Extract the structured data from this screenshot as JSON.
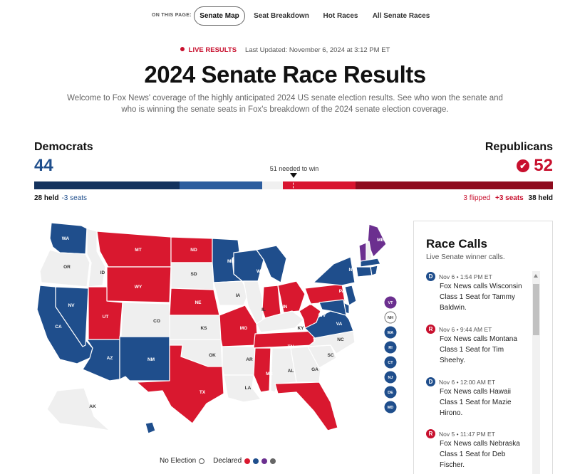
{
  "nav": {
    "label": "ON THIS PAGE:",
    "items": [
      "Senate Map",
      "Seat Breakdown",
      "Hot Races",
      "All Senate Races"
    ]
  },
  "live": {
    "badge": "LIVE RESULTS",
    "updated": "Last Updated: November 6, 2024 at 3:12 PM ET"
  },
  "title": "2024 Senate Race Results",
  "intro": "Welcome to Fox News' coverage of the highly anticipated 2024 US senate election results. See who won the senate and who is winning the senate seats in Fox's breakdown of the 2024 senate election coverage.",
  "balance": {
    "dem": {
      "label": "Democrats",
      "seats": "44",
      "held": "28 held",
      "change": "-3 seats"
    },
    "rep": {
      "label": "Republicans",
      "seats": "52",
      "flipped": "3 flipped",
      "change": "+3 seats",
      "held": "38 held"
    },
    "needed": "51 needed to win",
    "segments": [
      {
        "party": "dem-held",
        "seats": 28,
        "color": "#14335e"
      },
      {
        "party": "dem-won",
        "seats": 16,
        "color": "#2c5d9e"
      },
      {
        "party": "uncalled",
        "seats": 4,
        "color": "#f0f0f0"
      },
      {
        "party": "rep-won",
        "seats": 14,
        "color": "#d8142f"
      },
      {
        "party": "rep-held",
        "seats": 38,
        "color": "#8e0b1e"
      }
    ]
  },
  "colors": {
    "dem": "#1f4e8c",
    "rep": "#d9182f",
    "ind": "#6b2f8f",
    "none": "#efefef",
    "accent": "#c8102e"
  },
  "map": {
    "states": [
      {
        "abbr": "WA",
        "party": "dem"
      },
      {
        "abbr": "OR",
        "party": "none"
      },
      {
        "abbr": "CA",
        "party": "dem"
      },
      {
        "abbr": "NV",
        "party": "dem"
      },
      {
        "abbr": "ID",
        "party": "none"
      },
      {
        "abbr": "MT",
        "party": "rep"
      },
      {
        "abbr": "WY",
        "party": "rep"
      },
      {
        "abbr": "UT",
        "party": "rep"
      },
      {
        "abbr": "AZ",
        "party": "dem"
      },
      {
        "abbr": "CO",
        "party": "none"
      },
      {
        "abbr": "NM",
        "party": "dem"
      },
      {
        "abbr": "ND",
        "party": "rep"
      },
      {
        "abbr": "SD",
        "party": "none"
      },
      {
        "abbr": "NE",
        "party": "rep"
      },
      {
        "abbr": "KS",
        "party": "none"
      },
      {
        "abbr": "OK",
        "party": "none"
      },
      {
        "abbr": "TX",
        "party": "rep"
      },
      {
        "abbr": "MN",
        "party": "dem"
      },
      {
        "abbr": "IA",
        "party": "none"
      },
      {
        "abbr": "MO",
        "party": "rep"
      },
      {
        "abbr": "AR",
        "party": "none"
      },
      {
        "abbr": "LA",
        "party": "none"
      },
      {
        "abbr": "WI",
        "party": "dem"
      },
      {
        "abbr": "IL",
        "party": "none"
      },
      {
        "abbr": "MI",
        "party": "dem"
      },
      {
        "abbr": "IN",
        "party": "rep"
      },
      {
        "abbr": "OH",
        "party": "rep"
      },
      {
        "abbr": "KY",
        "party": "none"
      },
      {
        "abbr": "TN",
        "party": "rep"
      },
      {
        "abbr": "MS",
        "party": "rep"
      },
      {
        "abbr": "AL",
        "party": "none"
      },
      {
        "abbr": "GA",
        "party": "none"
      },
      {
        "abbr": "FL",
        "party": "rep"
      },
      {
        "abbr": "SC",
        "party": "none"
      },
      {
        "abbr": "NC",
        "party": "none"
      },
      {
        "abbr": "VA",
        "party": "dem"
      },
      {
        "abbr": "WV",
        "party": "rep"
      },
      {
        "abbr": "PA",
        "party": "rep"
      },
      {
        "abbr": "NY",
        "party": "dem"
      },
      {
        "abbr": "ME",
        "party": "ind"
      },
      {
        "abbr": "AK",
        "party": "none"
      },
      {
        "abbr": "HI",
        "party": "dem"
      }
    ],
    "small_states": [
      {
        "abbr": "VT",
        "party": "ind"
      },
      {
        "abbr": "NH",
        "party": "none"
      },
      {
        "abbr": "MA",
        "party": "dem"
      },
      {
        "abbr": "RI",
        "party": "dem"
      },
      {
        "abbr": "CT",
        "party": "dem"
      },
      {
        "abbr": "NJ",
        "party": "dem"
      },
      {
        "abbr": "DE",
        "party": "dem"
      },
      {
        "abbr": "MD",
        "party": "dem"
      }
    ]
  },
  "legend": {
    "no_election": "No Election",
    "declared": "Declared"
  },
  "race_calls": {
    "title": "Race Calls",
    "subtitle": "Live Senate winner calls.",
    "items": [
      {
        "party": "D",
        "time": "Nov 6 • 1:54 PM ET",
        "text": "Fox News calls Wisconsin Class 1 Seat for Tammy Baldwin."
      },
      {
        "party": "R",
        "time": "Nov 6 • 9:44 AM ET",
        "text": "Fox News calls Montana Class 1 Seat for Tim Sheehy."
      },
      {
        "party": "D",
        "time": "Nov 6 • 12:00 AM ET",
        "text": "Fox News calls Hawaii Class 1 Seat for Mazie Hirono."
      },
      {
        "party": "R",
        "time": "Nov 5 • 11:47 PM ET",
        "text": "Fox News calls Nebraska Class 1 Seat for Deb Fischer."
      }
    ]
  }
}
